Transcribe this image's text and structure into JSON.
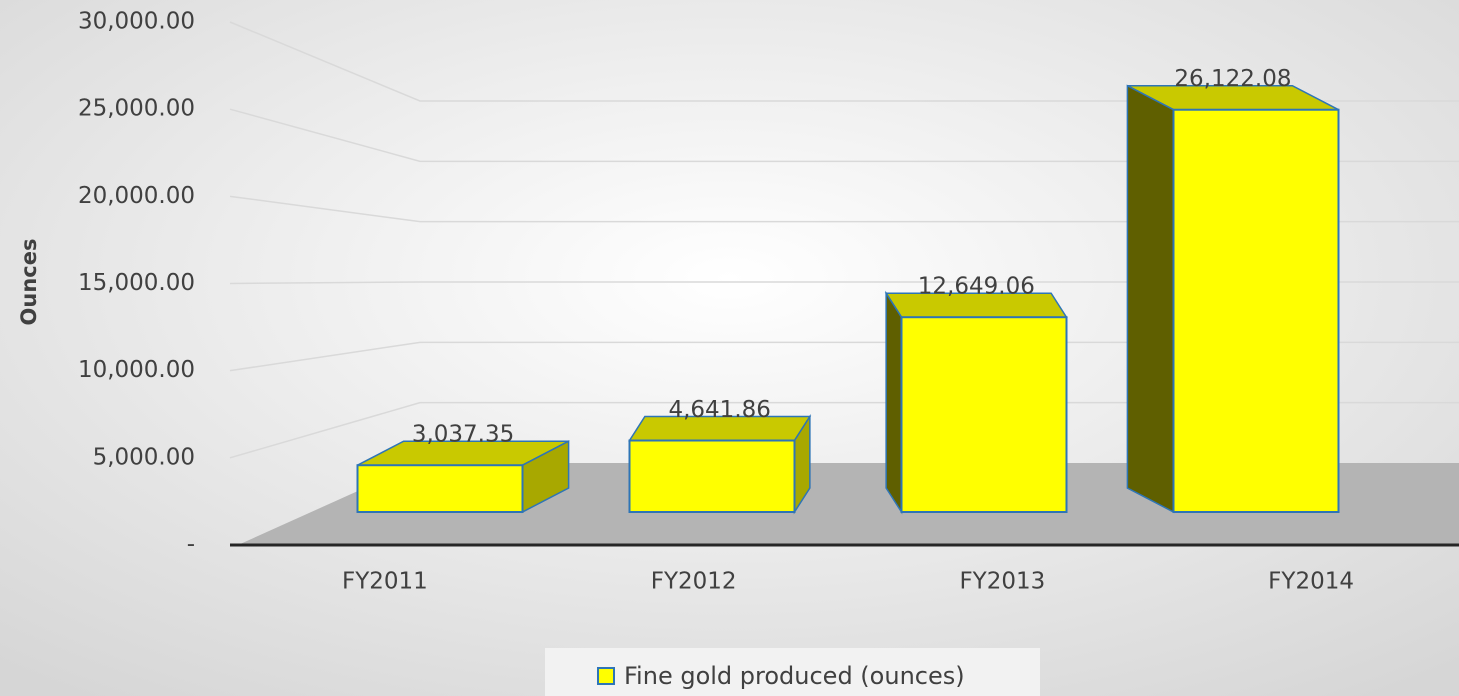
{
  "chart_data": {
    "type": "bar3d",
    "y_label": "Ounces",
    "categories": [
      "FY2011",
      "FY2012",
      "FY2013",
      "FY2014"
    ],
    "series": [
      {
        "name": "Fine gold produced (ounces)",
        "color": "#ffff00",
        "values": [
          3037.35,
          4641.86,
          12649.06,
          26122.08
        ],
        "value_labels": [
          "3,037.35",
          "4,641.86",
          "12,649.06",
          "26,122.08"
        ]
      }
    ],
    "ylim": [
      0,
      30000
    ],
    "yticks": [
      {
        "value": 0,
        "label": "-"
      },
      {
        "value": 5000,
        "label": "5,000.00"
      },
      {
        "value": 10000,
        "label": "10,000.00"
      },
      {
        "value": 15000,
        "label": "15,000.00"
      },
      {
        "value": 20000,
        "label": "20,000.00"
      },
      {
        "value": 25000,
        "label": "25,000.00"
      },
      {
        "value": 30000,
        "label": "30,000.00"
      }
    ],
    "grid": true,
    "legend": "bottom"
  }
}
